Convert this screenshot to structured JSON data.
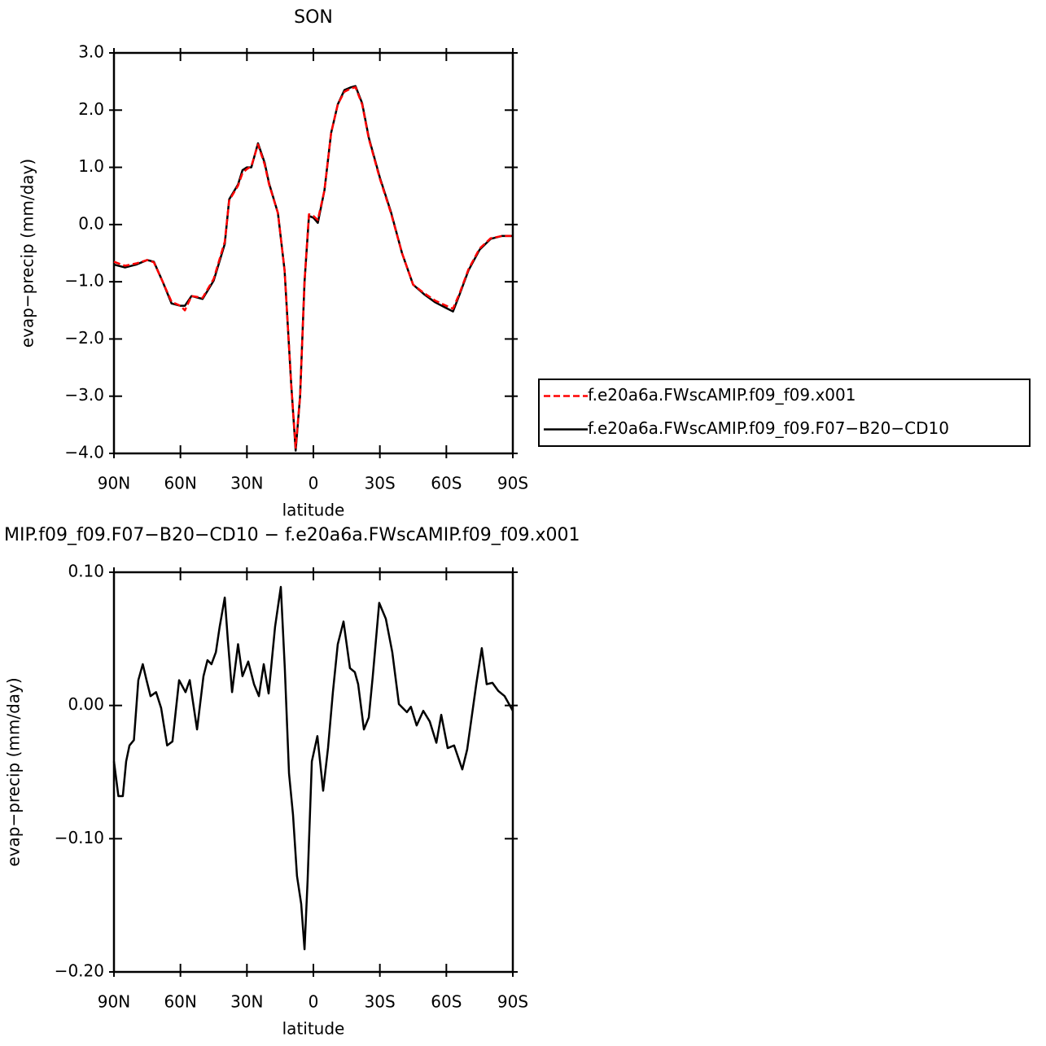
{
  "chart_data": [
    {
      "type": "line",
      "title": "SON",
      "xlabel": "latitude",
      "ylabel": "evap−precip (mm/day)",
      "legend": "right",
      "x": [
        90,
        85,
        80,
        75,
        72,
        68,
        64,
        60,
        58,
        55,
        50,
        45,
        40,
        38,
        34,
        32,
        30,
        28,
        25,
        22,
        20,
        16,
        13,
        10,
        8,
        6,
        4,
        2,
        0,
        -2,
        -5,
        -8,
        -11,
        -14,
        -17,
        -19,
        -22,
        -25,
        -30,
        -35,
        -40,
        -45,
        -50,
        -55,
        -60,
        -63,
        -66,
        -70,
        -75,
        -80,
        -85,
        -90
      ],
      "series": [
        {
          "name": "f.e20a6a.FWscAMIP.f09_f09.x001",
          "color": "#ff0000",
          "dash": true,
          "values": [
            -0.65,
            -0.72,
            -0.68,
            -0.62,
            -0.66,
            -1.0,
            -1.35,
            -1.42,
            -1.5,
            -1.25,
            -1.28,
            -0.95,
            -0.3,
            0.42,
            0.68,
            0.9,
            0.97,
            1.02,
            1.4,
            1.05,
            0.7,
            0.2,
            -0.8,
            -2.8,
            -3.9,
            -3.0,
            -1.0,
            0.18,
            0.15,
            0.08,
            0.6,
            1.6,
            2.1,
            2.32,
            2.38,
            2.4,
            2.1,
            1.5,
            0.8,
            0.2,
            -0.5,
            -1.05,
            -1.2,
            -1.33,
            -1.42,
            -1.47,
            -1.2,
            -0.78,
            -0.42,
            -0.24,
            -0.2,
            -0.2
          ]
        },
        {
          "name": "f.e20a6a.FWscAMIP.f09_f09.F07−B20−CD10",
          "color": "#000000",
          "dash": false,
          "values": [
            -0.7,
            -0.75,
            -0.7,
            -0.62,
            -0.65,
            -1.0,
            -1.38,
            -1.42,
            -1.42,
            -1.25,
            -1.3,
            -0.98,
            -0.34,
            0.44,
            0.7,
            0.95,
            1.0,
            1.0,
            1.42,
            1.08,
            0.72,
            0.2,
            -0.8,
            -2.8,
            -3.95,
            -3.0,
            -1.0,
            0.15,
            0.12,
            0.03,
            0.6,
            1.6,
            2.1,
            2.35,
            2.4,
            2.42,
            2.12,
            1.52,
            0.82,
            0.22,
            -0.5,
            -1.05,
            -1.22,
            -1.36,
            -1.46,
            -1.52,
            -1.22,
            -0.8,
            -0.44,
            -0.25,
            -0.2,
            -0.2
          ]
        }
      ],
      "xlim": [
        90,
        -90
      ],
      "xticks": [
        {
          "value": 90,
          "label": "90N"
        },
        {
          "value": 60,
          "label": "60N"
        },
        {
          "value": 30,
          "label": "30N"
        },
        0,
        {
          "value": -30,
          "label": "30S"
        },
        {
          "value": -60,
          "label": "60S"
        },
        {
          "value": -90,
          "label": "90S"
        }
      ],
      "ylim": [
        -4,
        3
      ],
      "yticks": [
        {
          "value": 3,
          "label": "3.0"
        },
        {
          "value": 2,
          "label": "2.0"
        },
        {
          "value": 1,
          "label": "1.0"
        },
        {
          "value": 0,
          "label": "0.0"
        },
        {
          "value": -1,
          "label": "−1.0"
        },
        {
          "value": -2,
          "label": "−2.0"
        },
        {
          "value": -3,
          "label": "−3.0"
        },
        {
          "value": -4,
          "label": "−4.0"
        }
      ]
    },
    {
      "type": "line",
      "title": "MIP.f09_f09.F07−B20−CD10 − f.e20a6a.FWscAMIP.f09_f09.x001",
      "xlabel": "latitude",
      "ylabel": "evap−precip (mm/day)",
      "x": [
        90,
        88,
        86,
        84.5,
        83,
        81,
        79,
        77,
        75.3,
        73.5,
        71,
        68.7,
        66,
        63.6,
        60.6,
        57.7,
        55.8,
        52.5,
        49.6,
        47.8,
        46,
        44,
        42.3,
        40,
        38.6,
        36.7,
        34,
        32,
        29.4,
        26.8,
        24.6,
        22.4,
        20.2,
        17.3,
        14.7,
        12.9,
        11,
        9.2,
        7.4,
        5.5,
        4,
        2.6,
        0.7,
        -1.8,
        -4.4,
        -6.6,
        -8.8,
        -11,
        -13.6,
        -16.5,
        -18.7,
        -20.2,
        -22.8,
        -25,
        -26.8,
        -29.7,
        -32.7,
        -35.6,
        -38.6,
        -42.2,
        -44,
        -46.6,
        -49.6,
        -52.5,
        -55.5,
        -57.7,
        -60.6,
        -63.5,
        -67.2,
        -69.4,
        -73.5,
        -76,
        -78.2,
        -80.8,
        -83.4,
        -86.3,
        -90
      ],
      "series": [
        {
          "color": "#000000",
          "dash": false,
          "values": [
            -0.042,
            -0.068,
            -0.068,
            -0.042,
            -0.03,
            -0.026,
            0.019,
            0.031,
            0.019,
            0.007,
            0.01,
            -0.002,
            -0.03,
            -0.027,
            0.019,
            0.01,
            0.019,
            -0.018,
            0.022,
            0.034,
            0.031,
            0.04,
            0.059,
            0.081,
            0.049,
            0.01,
            0.046,
            0.022,
            0.033,
            0.016,
            0.007,
            0.031,
            0.009,
            0.059,
            0.089,
            0.028,
            -0.051,
            -0.082,
            -0.128,
            -0.149,
            -0.183,
            -0.131,
            -0.042,
            -0.023,
            -0.064,
            -0.032,
            0.01,
            0.046,
            0.063,
            0.028,
            0.025,
            0.016,
            -0.018,
            -0.009,
            0.022,
            0.077,
            0.065,
            0.04,
            0.001,
            -0.005,
            -0.001,
            -0.015,
            -0.004,
            -0.012,
            -0.028,
            -0.007,
            -0.032,
            -0.03,
            -0.048,
            -0.033,
            0.016,
            0.043,
            0.016,
            0.017,
            0.011,
            0.007,
            -0.004
          ]
        }
      ],
      "xlim": [
        90,
        -90
      ],
      "xticks": [
        {
          "value": 90,
          "label": "90N"
        },
        {
          "value": 60,
          "label": "60N"
        },
        {
          "value": 30,
          "label": "30N"
        },
        0,
        {
          "value": -30,
          "label": "30S"
        },
        {
          "value": -60,
          "label": "60S"
        },
        {
          "value": -90,
          "label": "90S"
        }
      ],
      "ylim": [
        -0.2,
        0.1
      ],
      "yticks": [
        {
          "value": 0.1,
          "label": "0.10"
        },
        {
          "value": 0,
          "label": "0.00"
        },
        {
          "value": -0.1,
          "label": "−0.10"
        },
        {
          "value": -0.2,
          "label": "−0.20"
        }
      ]
    }
  ]
}
